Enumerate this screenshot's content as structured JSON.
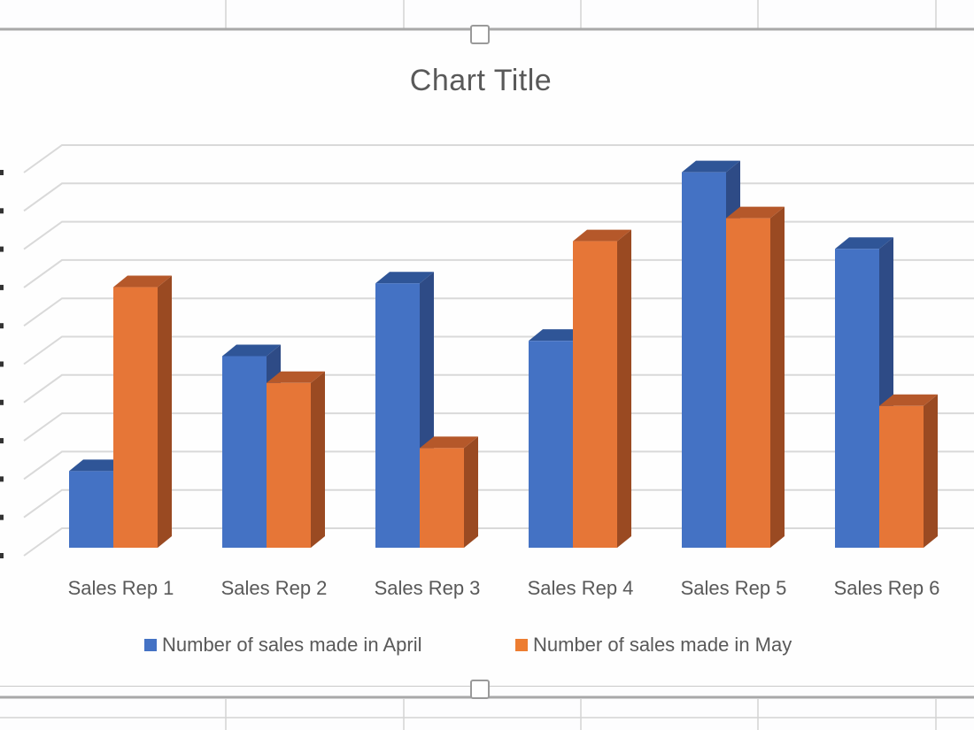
{
  "chart_data": {
    "type": "bar",
    "subtype": "3d-clustered-column",
    "title": "Chart Title",
    "xlabel": "",
    "ylabel": "",
    "categories": [
      "Sales Rep 1",
      "Sales Rep 2",
      "Sales Rep 3",
      "Sales Rep 4",
      "Sales Rep 5",
      "Sales Rep 6"
    ],
    "series": [
      {
        "name": "Number of sales made in April",
        "color": "#4472C4",
        "values": [
          2.0,
          5.0,
          6.9,
          5.4,
          9.8,
          7.8
        ]
      },
      {
        "name": "Number of sales made in May",
        "color": "#ED7D31",
        "values": [
          6.8,
          4.3,
          2.6,
          8.0,
          8.6,
          3.7
        ]
      }
    ],
    "ylim": [
      0,
      10
    ],
    "y_gridlines": 11,
    "y_tick_labels_visible": false,
    "grid": true,
    "legend_position": "bottom"
  },
  "colors": {
    "april_front": "#4472C4",
    "april_top": "#2F5597",
    "april_side": "#2E4B86",
    "may_front": "#E67637",
    "may_top": "#B5582A",
    "may_side": "#9A4A22",
    "gridline": "#D9D9D9",
    "text": "#595959"
  }
}
